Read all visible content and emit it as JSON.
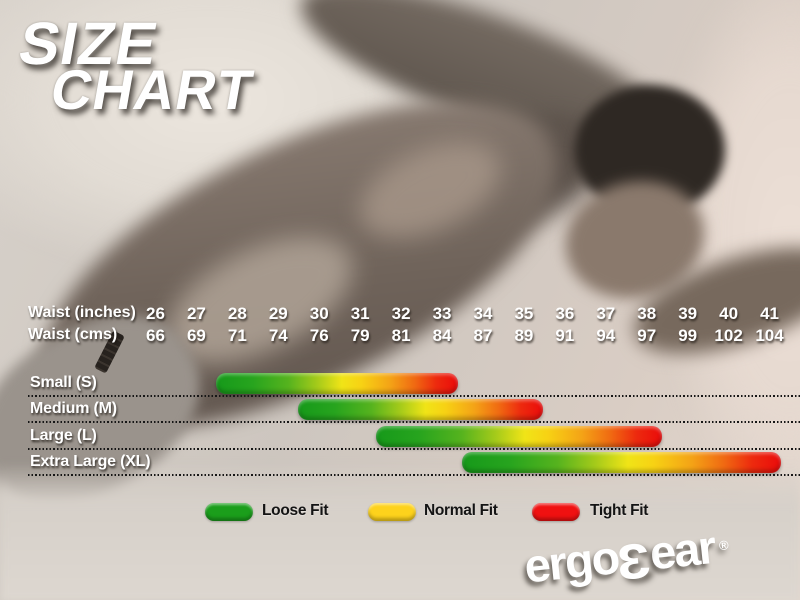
{
  "title": {
    "line1": "SIZE",
    "line2": "CHART"
  },
  "waist_table": {
    "rows": [
      {
        "label": "Waist (inches)",
        "values": [
          "26",
          "27",
          "28",
          "29",
          "30",
          "31",
          "32",
          "33",
          "34",
          "35",
          "36",
          "37",
          "38",
          "39",
          "40",
          "41"
        ]
      },
      {
        "label": "Waist (cms)",
        "values": [
          "66",
          "69",
          "71",
          "74",
          "76",
          "79",
          "81",
          "84",
          "87",
          "89",
          "91",
          "94",
          "97",
          "99",
          "102",
          "104"
        ]
      }
    ]
  },
  "legend": {
    "items": [
      {
        "label": "Loose Fit",
        "color": "#1b9e1b"
      },
      {
        "label": "Normal Fit",
        "color": "#fdd21c"
      },
      {
        "label": "Tight Fit",
        "color": "#f01111"
      }
    ]
  },
  "brand": {
    "pre": "ergo",
    "mid": "3",
    "post": "ear",
    "registered": "®"
  },
  "chart_data": {
    "type": "bar",
    "subtype": "horizontal-range",
    "title": "SIZE CHART",
    "x_axis": {
      "primary_label": "Waist (inches)",
      "primary_ticks": [
        26,
        27,
        28,
        29,
        30,
        31,
        32,
        33,
        34,
        35,
        36,
        37,
        38,
        39,
        40,
        41
      ],
      "secondary_label": "Waist (cms)",
      "secondary_ticks": [
        66,
        69,
        71,
        74,
        76,
        79,
        81,
        84,
        87,
        89,
        91,
        94,
        97,
        99,
        102,
        104
      ],
      "xlim": [
        26,
        41
      ]
    },
    "series": [
      {
        "name": "Small (S)",
        "range_inches": [
          27.5,
          33.4
        ]
      },
      {
        "name": "Medium (M)",
        "range_inches": [
          29.5,
          35.5
        ]
      },
      {
        "name": "Large (L)",
        "range_inches": [
          31.4,
          38.4
        ]
      },
      {
        "name": "Extra Large (XL)",
        "range_inches": [
          33.5,
          41.3
        ]
      }
    ],
    "bar_gradient_meaning": [
      {
        "color": "green",
        "label": "Loose Fit"
      },
      {
        "color": "yellow",
        "label": "Normal Fit"
      },
      {
        "color": "red",
        "label": "Tight Fit"
      }
    ],
    "legend_position": "bottom",
    "grid": "dotted-row-separators"
  }
}
